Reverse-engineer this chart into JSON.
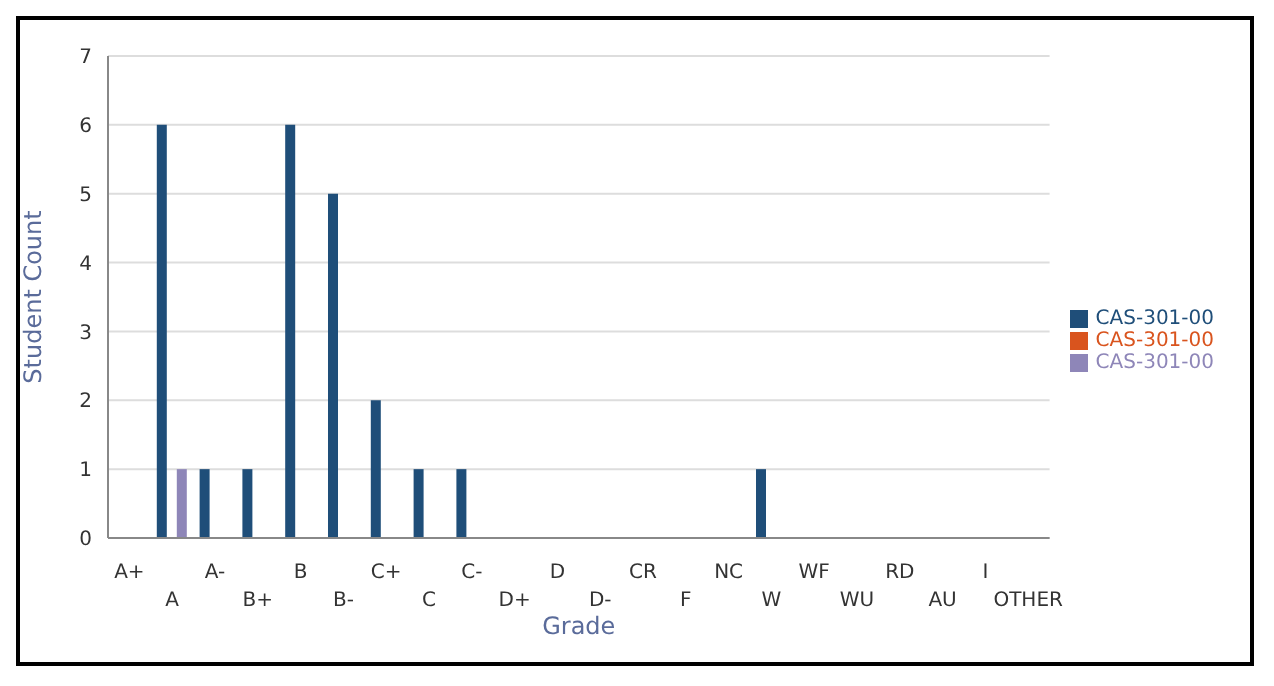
{
  "chart_data": {
    "type": "bar",
    "xlabel": "Grade",
    "ylabel": "Student Count",
    "categories": [
      "A+",
      "A",
      "A-",
      "B+",
      "B",
      "B-",
      "C+",
      "C",
      "C-",
      "D+",
      "D",
      "D-",
      "CR",
      "F",
      "NC",
      "W",
      "WF",
      "WU",
      "RD",
      "AU",
      "I",
      "OTHER"
    ],
    "series": [
      {
        "name": "CAS-301-00",
        "color": "#1f4e79",
        "values": [
          0,
          6,
          1,
          1,
          6,
          5,
          2,
          1,
          1,
          0,
          0,
          0,
          0,
          0,
          0,
          1,
          0,
          0,
          0,
          0,
          0,
          0
        ]
      },
      {
        "name": "CAS-301-00",
        "color": "#d9541e",
        "values": [
          0,
          0,
          0,
          0,
          0,
          0,
          0,
          0,
          0,
          0,
          0,
          0,
          0,
          0,
          0,
          0,
          0,
          0,
          0,
          0,
          0,
          0
        ]
      },
      {
        "name": "CAS-301-00",
        "color": "#8e86b8",
        "values": [
          0,
          1,
          0,
          0,
          0,
          0,
          0,
          0,
          0,
          0,
          0,
          0,
          0,
          0,
          0,
          0,
          0,
          0,
          0,
          0,
          0,
          0
        ]
      }
    ],
    "ylim": [
      0,
      7
    ],
    "yticks": [
      0,
      1,
      2,
      3,
      4,
      5,
      6,
      7
    ],
    "grid": "y",
    "legend": "right"
  }
}
